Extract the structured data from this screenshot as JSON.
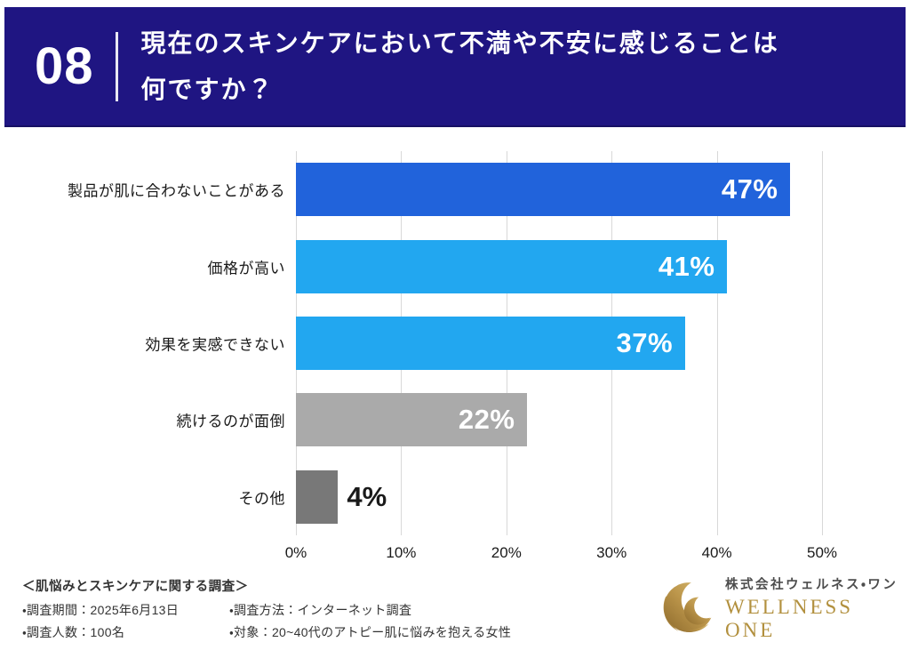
{
  "header": {
    "number": "08",
    "title_line1": "現在のスキンケアにおいて不満や不安に感じることは",
    "title_line2": "何ですか？",
    "bg_color": "#1F1582"
  },
  "chart_data": {
    "type": "bar",
    "orientation": "horizontal",
    "title": "現在のスキンケアにおいて不満や不安に感じることは何ですか？",
    "categories": [
      "製品が肌に合わないことがある",
      "価格が高い",
      "効果を実感できない",
      "続けるのが面倒",
      "その他"
    ],
    "values": [
      47,
      41,
      37,
      22,
      4
    ],
    "value_labels": [
      "47%",
      "41%",
      "37%",
      "22%",
      "4%"
    ],
    "bar_colors": [
      "#2163DB",
      "#22A7F0",
      "#22A7F0",
      "#AAAAAA",
      "#787878"
    ],
    "xlabel": "",
    "ylabel": "",
    "xlim": [
      0,
      50
    ],
    "x_ticks": [
      "0%",
      "10%",
      "20%",
      "30%",
      "40%",
      "50%"
    ],
    "grid": true,
    "gridline_color": "#d8d8d8",
    "legend": false
  },
  "footer": {
    "survey_title": "＜肌悩みとスキンケアに関する調査＞",
    "items_left": [
      "・調査期間：2025年6月13日",
      "・調査人数：100名"
    ],
    "items_right": [
      "・調査方法：インターネット調査",
      "・対象：20~40代のアトピー肌に悩みを抱える女性"
    ]
  },
  "logo": {
    "company_jp": "株式会社ウェルネス・ワン",
    "company_en": "WELLNESS ONE",
    "gold_dark": "#8d6a2c",
    "gold_mid": "#bb954a",
    "gold_light": "#dcc077"
  }
}
